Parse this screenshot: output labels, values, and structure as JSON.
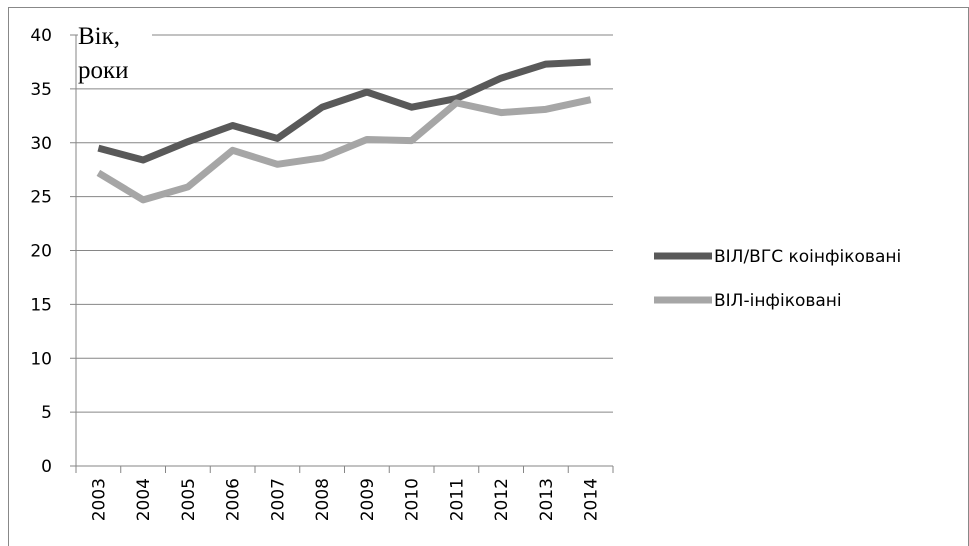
{
  "chart_data": {
    "type": "line",
    "y_label": "Вік, роки",
    "categories": [
      "2003",
      "2004",
      "2005",
      "2006",
      "2007",
      "2008",
      "2009",
      "2010",
      "2011",
      "2012",
      "2013",
      "2014"
    ],
    "series": [
      {
        "name": "ВІЛ/ВГС коінфіковані",
        "color": "#595959",
        "values": [
          29.5,
          28.4,
          30.1,
          31.6,
          30.4,
          33.3,
          34.7,
          33.3,
          34.1,
          36.0,
          37.3,
          37.5
        ]
      },
      {
        "name": "ВІЛ-інфіковані",
        "color": "#a6a6a6",
        "values": [
          27.2,
          24.7,
          25.9,
          29.3,
          28.0,
          28.6,
          30.3,
          30.2,
          33.7,
          32.8,
          33.1,
          34.0
        ]
      }
    ],
    "ylim": [
      0,
      40
    ],
    "yticks": [
      0,
      5,
      10,
      15,
      20,
      25,
      30,
      35,
      40
    ],
    "grid": true,
    "legend": "right"
  }
}
